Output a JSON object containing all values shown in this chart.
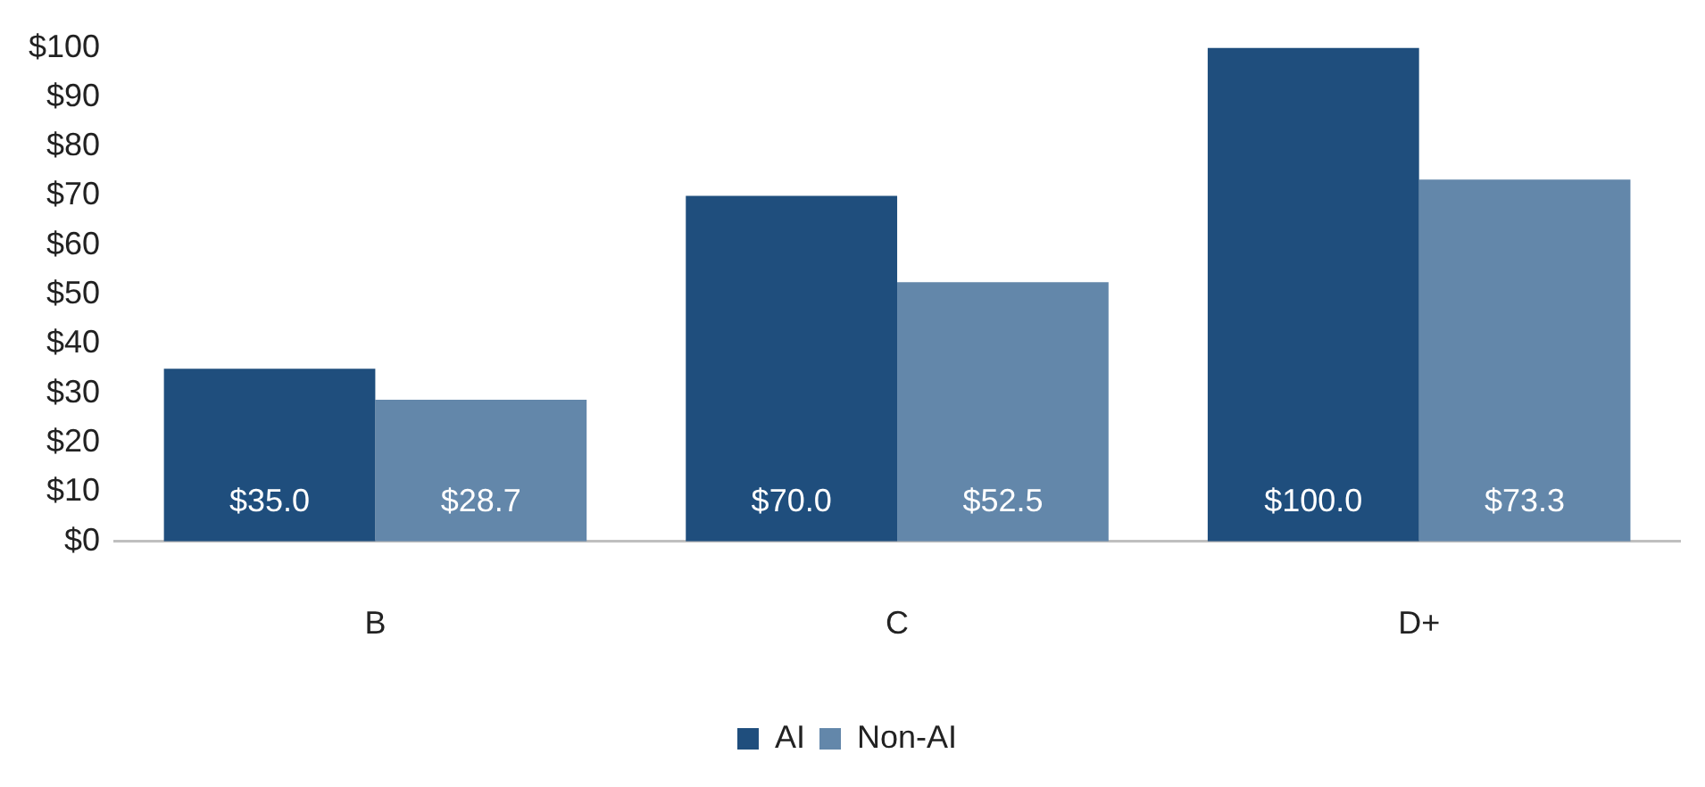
{
  "chart_data": {
    "type": "bar",
    "categories": [
      "B",
      "C",
      "D+"
    ],
    "series": [
      {
        "name": "AI",
        "color": "#1f4e7d",
        "values": [
          35.0,
          70.0,
          100.0
        ],
        "value_labels": [
          "$35.0",
          "$70.0",
          "$100.0"
        ]
      },
      {
        "name": "Non-AI",
        "color": "#6387aa",
        "values": [
          28.7,
          52.5,
          73.3
        ],
        "value_labels": [
          "$28.7",
          "$52.5",
          "$73.3"
        ]
      }
    ],
    "ylim": [
      0,
      100
    ],
    "yticks": [
      {
        "value": 0,
        "label": "$0"
      },
      {
        "value": 10,
        "label": "$10"
      },
      {
        "value": 20,
        "label": "$20"
      },
      {
        "value": 30,
        "label": "$30"
      },
      {
        "value": 40,
        "label": "$40"
      },
      {
        "value": 50,
        "label": "$50"
      },
      {
        "value": 60,
        "label": "$60"
      },
      {
        "value": 70,
        "label": "$70"
      },
      {
        "value": 80,
        "label": "$80"
      },
      {
        "value": 90,
        "label": "$90"
      },
      {
        "value": 100,
        "label": "$100"
      }
    ],
    "grid": false,
    "legend": "bottom"
  }
}
